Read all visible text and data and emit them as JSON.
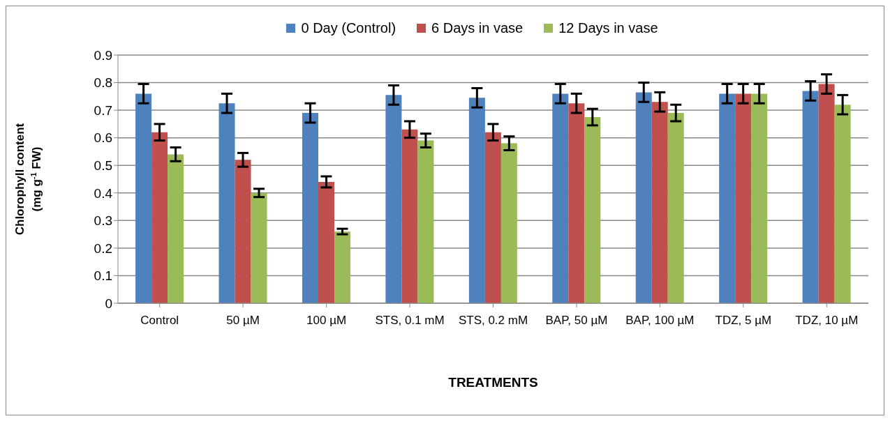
{
  "chart_data": {
    "type": "bar",
    "xlabel": "TREATMENTS",
    "ylabel": "Chlorophyll content (mg g$^{-1}$ FW)",
    "categories": [
      "Control",
      "50 µM",
      "100 µM",
      "STS, 0.1 mM",
      "STS, 0.2 mM",
      "BAP, 50 µM",
      "BAP, 100 µM",
      "TDZ, 5 µM",
      "TDZ, 10 µM"
    ],
    "series": [
      {
        "name": "0 Day (Control)",
        "color": "#4f81bd",
        "values": [
          0.76,
          0.725,
          0.69,
          0.755,
          0.745,
          0.76,
          0.765,
          0.76,
          0.77
        ],
        "errors": [
          0.035,
          0.035,
          0.035,
          0.035,
          0.035,
          0.035,
          0.035,
          0.035,
          0.035
        ]
      },
      {
        "name": "6 Days in vase",
        "color": "#c0504d",
        "values": [
          0.62,
          0.52,
          0.44,
          0.63,
          0.62,
          0.725,
          0.73,
          0.76,
          0.795
        ],
        "errors": [
          0.03,
          0.025,
          0.02,
          0.03,
          0.03,
          0.035,
          0.035,
          0.035,
          0.035
        ]
      },
      {
        "name": "12 Days in vase",
        "color": "#9bbb59",
        "values": [
          0.54,
          0.4,
          0.26,
          0.59,
          0.58,
          0.675,
          0.69,
          0.76,
          0.72
        ],
        "errors": [
          0.025,
          0.015,
          0.01,
          0.025,
          0.025,
          0.03,
          0.03,
          0.035,
          0.035
        ]
      }
    ],
    "ylim": [
      0,
      0.9
    ],
    "yticks": [
      0,
      0.1,
      0.2,
      0.3,
      0.4,
      0.5,
      0.6,
      0.7,
      0.8,
      0.9
    ],
    "grid": "y",
    "legend": "top"
  }
}
